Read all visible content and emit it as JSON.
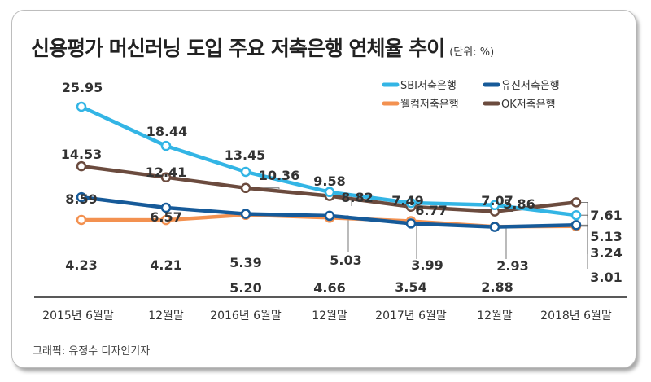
{
  "title": "신용평가 머신러닝 도입 주요 저축은행 연체율 추이",
  "unit": "(단위: %)",
  "credit": "그래픽: 유정수 디자인기자",
  "chart_data": {
    "type": "line",
    "categories": [
      "2015년 6월말",
      "12월말",
      "2016년 6월말",
      "12월말",
      "2017년 6월말",
      "12월말",
      "2018년 6월말"
    ],
    "series": [
      {
        "name": "SBI저축은행",
        "color": "#33b5e5",
        "values": [
          25.95,
          18.44,
          13.45,
          9.58,
          7.49,
          7.07,
          5.13
        ]
      },
      {
        "name": "유진저축은행",
        "color": "#165a99",
        "values": [
          8.59,
          6.57,
          5.39,
          5.03,
          3.54,
          2.88,
          3.24
        ]
      },
      {
        "name": "웰컴저축은행",
        "color": "#f39150",
        "values": [
          4.23,
          4.21,
          5.2,
          4.66,
          3.99,
          2.93,
          3.01
        ]
      },
      {
        "name": "OK저축은행",
        "color": "#6b4b3e",
        "values": [
          14.53,
          12.41,
          10.36,
          8.82,
          6.77,
          5.86,
          7.61
        ]
      }
    ],
    "labels": {
      "SBI저축은행": [
        "25.95",
        "18.44",
        "13.45",
        "9.58",
        "7.49",
        "7.07",
        "5.13"
      ],
      "유진저축은행": [
        "8.59",
        "6.57",
        "5.39",
        "5.03",
        "3.54",
        "2.88",
        "3.24"
      ],
      "웰컴저축은행": [
        "4.23",
        "4.21",
        "5.20",
        "4.66",
        "3.99",
        "2.93",
        "3.01"
      ],
      "OK저축은행": [
        "14.53",
        "12.41",
        "10.36",
        "8.82",
        "6.77",
        "5.86",
        "7.61"
      ]
    },
    "legend_position": "top-right",
    "grid": false
  }
}
